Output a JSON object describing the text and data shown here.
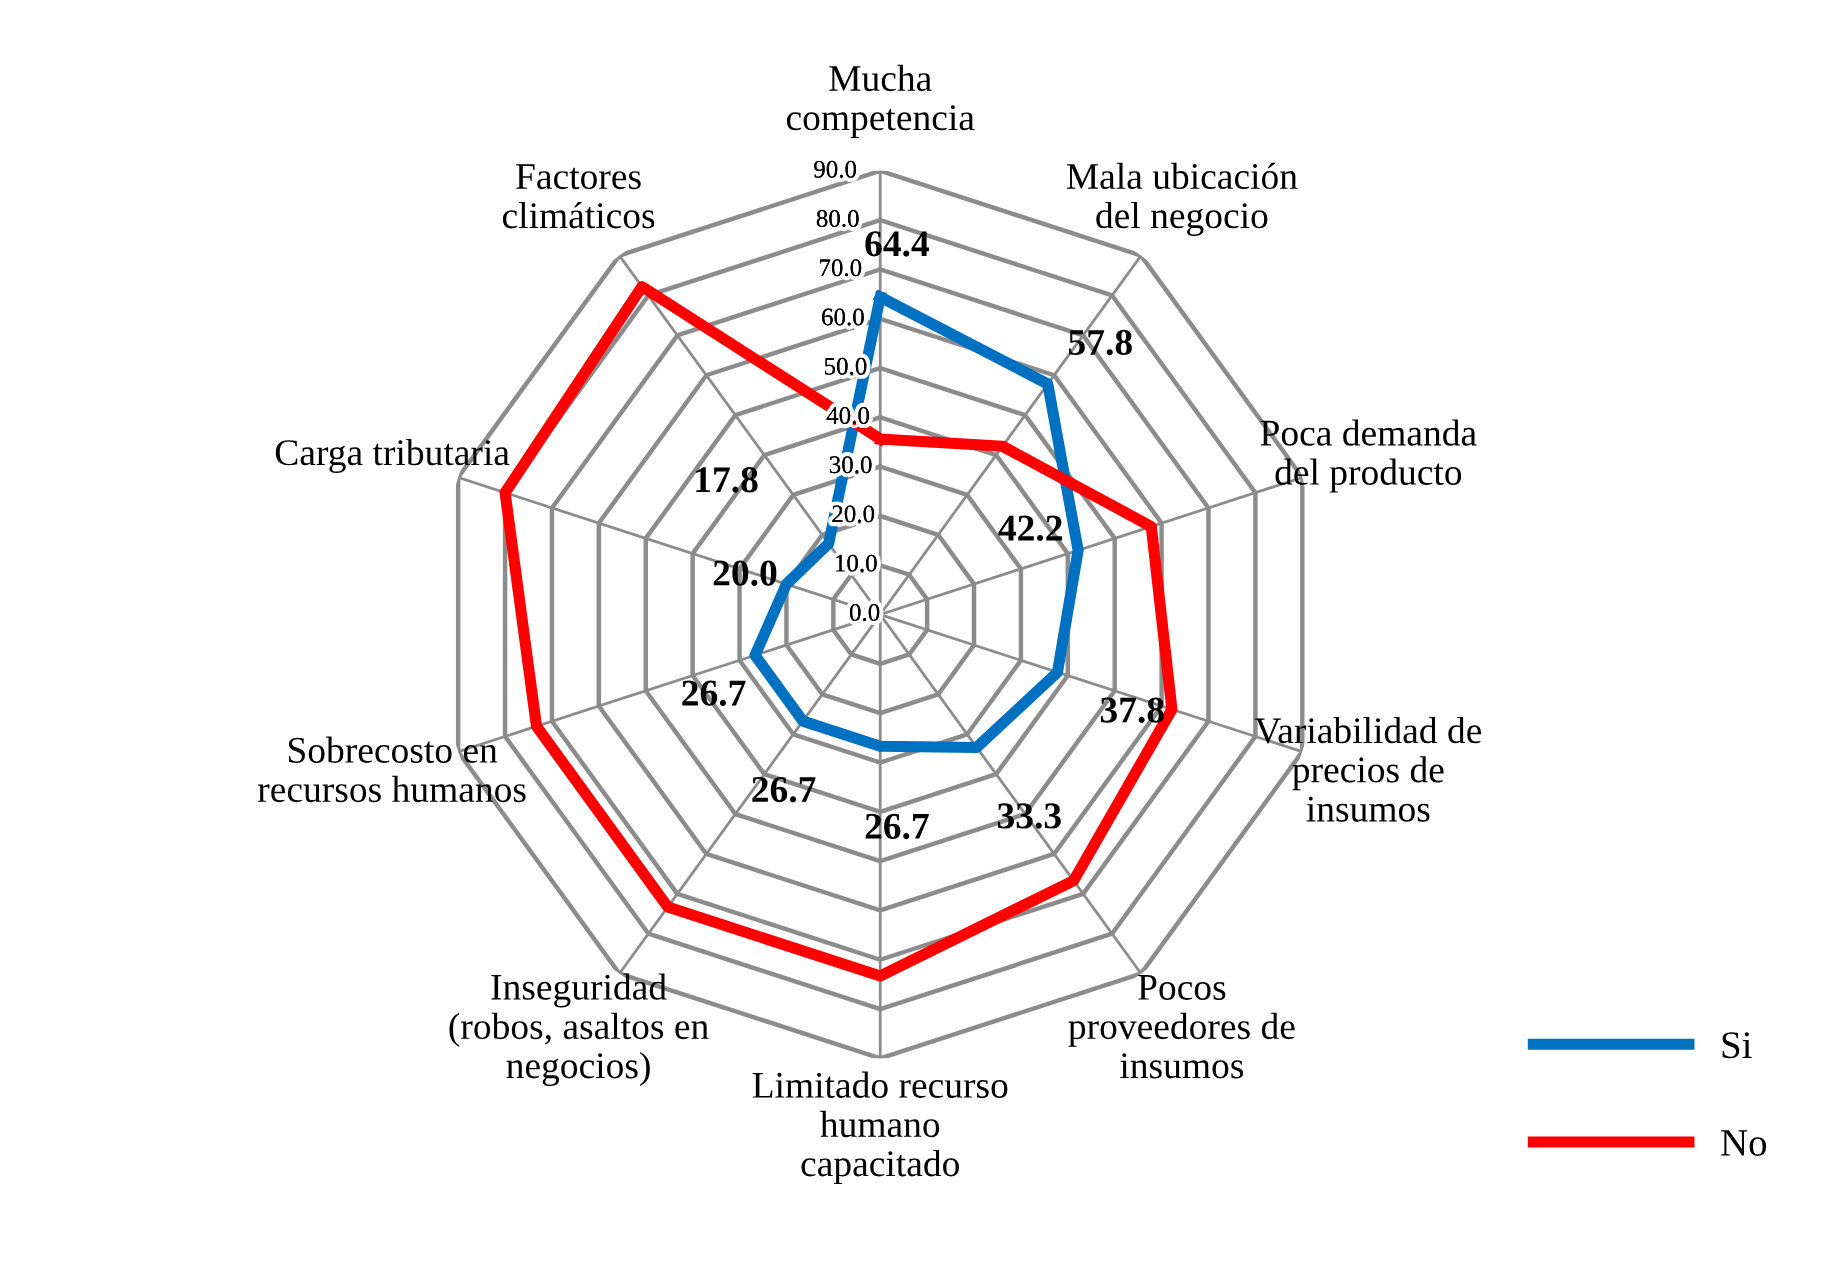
{
  "chart_data": {
    "type": "radar",
    "categories": [
      "Mucha\ncompetencia",
      "Mala ubicación\ndel negocio",
      "Poca demanda\ndel producto",
      "Variabilidad de\nprecios de\ninsumos",
      "Pocos\nproveedores de\ninsumos",
      "Limitado recurso\nhumano\ncapacitado",
      "Inseguridad\n(robos, asaltos en\nnegocios)",
      "Sobrecosto en\nrecursos humanos",
      "Carga tributaria",
      "Factores\nclimáticos"
    ],
    "series": [
      {
        "name": "Si",
        "color": "#0070c0",
        "values": [
          64.4,
          57.8,
          42.2,
          37.8,
          33.3,
          26.7,
          26.7,
          26.7,
          20.0,
          17.8
        ],
        "value_labels": [
          "64.4",
          "57.8",
          "42.2",
          "37.8",
          "33.3",
          "26.7",
          "26.7",
          "26.7",
          "20.0",
          "17.8"
        ]
      },
      {
        "name": "No",
        "color": "#ff0000",
        "values": [
          35.6,
          42.2,
          57.8,
          62.2,
          66.7,
          73.3,
          73.3,
          73.3,
          80.0,
          82.2
        ]
      }
    ],
    "ylim": [
      0,
      90
    ],
    "yticks": [
      {
        "value": 0,
        "label": "0.0"
      },
      {
        "value": 10,
        "label": "10.0"
      },
      {
        "value": 20,
        "label": "20.0"
      },
      {
        "value": 30,
        "label": "30.0"
      },
      {
        "value": 40,
        "label": "40.0"
      },
      {
        "value": 50,
        "label": "50.0"
      },
      {
        "value": 60,
        "label": "60.0"
      },
      {
        "value": 70,
        "label": "70.0"
      },
      {
        "value": 80,
        "label": "80.0"
      },
      {
        "value": 90,
        "label": "90.0"
      }
    ],
    "grid": true,
    "legend": "bottom right",
    "line_style": "solid",
    "marker": "none"
  }
}
